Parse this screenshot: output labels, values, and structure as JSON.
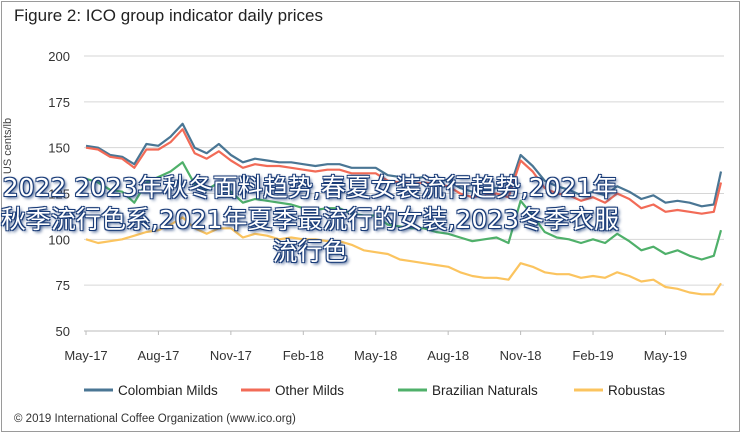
{
  "figure": {
    "title": "Figure 2: ICO group indicator daily prices",
    "ylabel": "US cents/lb",
    "copyright": "© 2019 International Coffee Organization (www.ico.org)"
  },
  "overlay_text": "2022 2023年秋冬面料趋势,春夏女装流行趋势,2021年秋季流行色系,2021年夏季最流行的女装,2023冬季衣服流行色",
  "colors": {
    "Colombian Milds": "#4a7694",
    "Other Milds": "#f26b57",
    "Brazilian Naturals": "#4fb06a",
    "Robustas": "#fbc45f"
  },
  "chart_data": {
    "type": "line",
    "title": "Figure 2: ICO group indicator daily prices",
    "xlabel": "",
    "ylabel": "US cents/lb",
    "ylim": [
      50,
      200
    ],
    "yticks": [
      50,
      75,
      100,
      125,
      150,
      175,
      200
    ],
    "xlim": [
      0,
      26.3
    ],
    "xticks": [
      "May-17",
      "Aug-17",
      "Nov-17",
      "Feb-18",
      "May-18",
      "Aug-18",
      "Nov-18",
      "Feb-19",
      "May-19"
    ],
    "xtick_positions": [
      0,
      3,
      6,
      9,
      12,
      15,
      18,
      21,
      24
    ],
    "grid": "horizontal",
    "legend_position": "bottom",
    "x": [
      0,
      0.5,
      1,
      1.5,
      2,
      2.5,
      3,
      3.5,
      4,
      4.5,
      5,
      5.5,
      6,
      6.5,
      7,
      7.5,
      8,
      8.5,
      9,
      9.5,
      10,
      10.5,
      11,
      11.5,
      12,
      12.5,
      13,
      13.5,
      14,
      14.5,
      15,
      15.5,
      16,
      16.5,
      17,
      17.5,
      18,
      18.5,
      19,
      19.5,
      20,
      20.5,
      21,
      21.5,
      22,
      22.5,
      23,
      23.5,
      24,
      24.5,
      25,
      25.5,
      26,
      26.3
    ],
    "series": [
      {
        "name": "Colombian Milds",
        "values": [
          151,
          150,
          146,
          145,
          141,
          152,
          151,
          156,
          163,
          150,
          147,
          152,
          146,
          142,
          144,
          143,
          142,
          142,
          141,
          140,
          141,
          141,
          139,
          139,
          139,
          135,
          134,
          133,
          134,
          133,
          132,
          128,
          126,
          127,
          128,
          126,
          146,
          140,
          132,
          129,
          127,
          124,
          126,
          124,
          129,
          126,
          122,
          124,
          120,
          121,
          120,
          118,
          119,
          137
        ]
      },
      {
        "name": "Other Milds",
        "values": [
          150,
          149,
          145,
          144,
          139,
          149,
          149,
          153,
          160,
          147,
          144,
          148,
          143,
          139,
          141,
          140,
          140,
          139,
          138,
          137,
          138,
          138,
          136,
          136,
          136,
          132,
          131,
          130,
          131,
          130,
          129,
          125,
          123,
          124,
          125,
          123,
          143,
          137,
          128,
          125,
          124,
          121,
          123,
          120,
          125,
          122,
          117,
          119,
          115,
          116,
          115,
          114,
          115,
          131
        ]
      },
      {
        "name": "Brazilian Naturals",
        "values": [
          133,
          131,
          127,
          126,
          120,
          131,
          134,
          137,
          142,
          130,
          127,
          131,
          126,
          120,
          122,
          121,
          120,
          119,
          117,
          116,
          117,
          117,
          114,
          113,
          113,
          108,
          107,
          106,
          106,
          104,
          103,
          101,
          99,
          100,
          101,
          98,
          121,
          113,
          104,
          101,
          100,
          98,
          100,
          98,
          103,
          99,
          94,
          96,
          92,
          94,
          91,
          89,
          91,
          105
        ]
      },
      {
        "name": "Robustas",
        "values": [
          100,
          98,
          99,
          100,
          102,
          104,
          105,
          108,
          112,
          106,
          103,
          106,
          106,
          101,
          103,
          102,
          100,
          101,
          100,
          100,
          99,
          99,
          97,
          94,
          93,
          92,
          89,
          88,
          87,
          86,
          85,
          82,
          80,
          79,
          79,
          78,
          87,
          85,
          82,
          81,
          81,
          79,
          80,
          79,
          82,
          80,
          77,
          78,
          74,
          73,
          71,
          70,
          70,
          76
        ]
      }
    ]
  }
}
